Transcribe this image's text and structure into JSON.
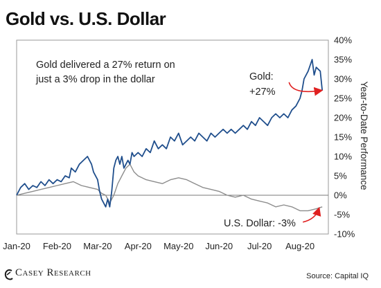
{
  "title": "Gold vs. U.S. Dollar",
  "source": "Source: Capital IQ",
  "brand": "Casey Research",
  "colors": {
    "gold": "#1f4e8c",
    "dollar": "#8c8c8c",
    "arrow": "#e02020",
    "axis": "#555555"
  },
  "chart_data": {
    "type": "line",
    "ylabel": "Year-to-Date Performance",
    "ylim": [
      -10,
      40
    ],
    "y_ticks": [
      40,
      35,
      30,
      25,
      20,
      15,
      10,
      5,
      0,
      -5,
      -10
    ],
    "y_tick_labels": [
      "40%",
      "35%",
      "30%",
      "25%",
      "20%",
      "15%",
      "10%",
      "5%",
      "0%",
      "-5%",
      "-10%"
    ],
    "x_tick_labels": [
      "Jan-20",
      "Feb-20",
      "Mar-20",
      "Apr-20",
      "May-20",
      "Jun-20",
      "Jul-20",
      "Aug-20"
    ],
    "xlim": [
      0,
      7.7
    ],
    "annotations": {
      "main": [
        "Gold delivered a 27% return on",
        "just a 3% drop in the dollar"
      ],
      "gold": [
        "Gold:",
        "+27%"
      ],
      "dollar": "U.S. Dollar: -3%"
    },
    "series": [
      {
        "name": "Gold",
        "x": [
          0,
          0.1,
          0.2,
          0.3,
          0.4,
          0.5,
          0.6,
          0.7,
          0.8,
          0.9,
          1.0,
          1.1,
          1.2,
          1.3,
          1.35,
          1.45,
          1.55,
          1.65,
          1.75,
          1.85,
          1.9,
          2.0,
          2.05,
          2.1,
          2.2,
          2.25,
          2.3,
          2.35,
          2.4,
          2.45,
          2.5,
          2.55,
          2.6,
          2.65,
          2.7,
          2.75,
          2.8,
          2.85,
          2.9,
          3.0,
          3.1,
          3.2,
          3.3,
          3.4,
          3.5,
          3.6,
          3.7,
          3.8,
          3.9,
          4.0,
          4.1,
          4.2,
          4.3,
          4.4,
          4.5,
          4.6,
          4.7,
          4.8,
          4.9,
          5.0,
          5.1,
          5.2,
          5.3,
          5.4,
          5.5,
          5.6,
          5.7,
          5.8,
          5.9,
          6.0,
          6.1,
          6.2,
          6.3,
          6.4,
          6.5,
          6.6,
          6.7,
          6.8,
          6.9,
          7.0,
          7.05,
          7.1,
          7.2,
          7.3,
          7.35,
          7.4,
          7.5,
          7.55
        ],
        "values": [
          0,
          2,
          3,
          1.5,
          2.5,
          2,
          3.5,
          2.5,
          4,
          3,
          4,
          3.5,
          5,
          4.5,
          7,
          6,
          8,
          9,
          10,
          8,
          6,
          4,
          1,
          -1,
          -3,
          -1,
          -3,
          1,
          7,
          9,
          10,
          8,
          10,
          7,
          8,
          9,
          8,
          11,
          10,
          11,
          10,
          12,
          11,
          14,
          12,
          13,
          12,
          15,
          14,
          16,
          13,
          14,
          15,
          14,
          16,
          15,
          14,
          16,
          15,
          16,
          17,
          16,
          17,
          16,
          17,
          18,
          17,
          19,
          18,
          20,
          19,
          18,
          20,
          21,
          20,
          21,
          20,
          22,
          23,
          25,
          27,
          30,
          32,
          35,
          31,
          33,
          32,
          27
        ]
      },
      {
        "name": "U.S. Dollar",
        "x": [
          0,
          0.2,
          0.4,
          0.6,
          0.8,
          1.0,
          1.2,
          1.4,
          1.6,
          1.8,
          2.0,
          2.1,
          2.2,
          2.3,
          2.4,
          2.5,
          2.6,
          2.7,
          2.8,
          2.9,
          3.0,
          3.2,
          3.4,
          3.6,
          3.8,
          4.0,
          4.2,
          4.4,
          4.6,
          4.8,
          5.0,
          5.2,
          5.4,
          5.6,
          5.8,
          6.0,
          6.2,
          6.4,
          6.6,
          6.8,
          7.0,
          7.2,
          7.4,
          7.55
        ],
        "values": [
          0,
          0.5,
          1,
          1.5,
          2,
          2.5,
          3,
          3.5,
          2.5,
          2,
          1.5,
          0.5,
          0,
          -2,
          0,
          3,
          5,
          7,
          8,
          6,
          5,
          4,
          3.5,
          3,
          4,
          4.5,
          4,
          3,
          2,
          1.5,
          1,
          0,
          -0.5,
          0,
          -1,
          -1.5,
          -2,
          -3,
          -2.5,
          -3,
          -4,
          -4,
          -3.5,
          -3
        ]
      }
    ]
  }
}
